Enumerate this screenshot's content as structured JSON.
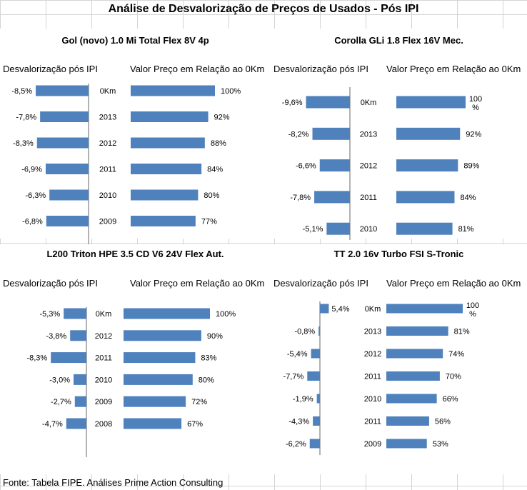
{
  "title": "Análise de Desvalorização de Preços de Usados - Pós IPI",
  "footer": "Fonte: Tabela FIPE. Análises Prime Action Consulting",
  "colors": {
    "bar": "#4f81bd",
    "axis": "#999999"
  },
  "chart_data": [
    {
      "type": "bar",
      "title": "Gol (novo) 1.0 Mi Total Flex 8V 4p",
      "left_header": "Desvalorização pós IPI",
      "right_header": "Valor Preço em Relação ao 0Km",
      "categories": [
        "0Km",
        "2013",
        "2012",
        "2011",
        "2010",
        "2009"
      ],
      "desvalorizacao": [
        -8.5,
        -7.8,
        -8.3,
        -6.9,
        -6.3,
        -6.8
      ],
      "desvalorizacao_labels": [
        "-8,5%",
        "-7,8%",
        "-8,3%",
        "-6,9%",
        "-6,3%",
        "-6,8%"
      ],
      "valor": [
        100,
        92,
        88,
        84,
        80,
        77
      ],
      "valor_labels": [
        "100%",
        "92%",
        "88%",
        "84%",
        "80%",
        "77%"
      ]
    },
    {
      "type": "bar",
      "title": "Corolla GLi 1.8 Flex 16V Mec.",
      "left_header": "Desvalorização pós IPI",
      "right_header": "Valor Preço em Relação ao 0Km",
      "categories": [
        "0Km",
        "2013",
        "2012",
        "2011",
        "2010"
      ],
      "desvalorizacao": [
        -9.6,
        -8.2,
        -6.6,
        -7.8,
        -5.1
      ],
      "desvalorizacao_labels": [
        "-9,6%",
        "-8,2%",
        "-6,6%",
        "-7,8%",
        "-5,1%"
      ],
      "valor": [
        100,
        92,
        89,
        84,
        81
      ],
      "valor_labels": [
        "100\n%",
        "92%",
        "89%",
        "84%",
        "81%"
      ]
    },
    {
      "type": "bar",
      "title": "L200 Triton HPE 3.5 CD V6 24V Flex Aut.",
      "left_header": "Desvalorização pós IPI",
      "right_header": "Valor Preço em Relação ao 0Km",
      "categories": [
        "0Km",
        "2012",
        "2011",
        "2010",
        "2009",
        "2008"
      ],
      "desvalorizacao": [
        -5.3,
        -3.8,
        -8.3,
        -3.0,
        -2.7,
        -4.7
      ],
      "desvalorizacao_labels": [
        "-5,3%",
        "-3,8%",
        "-8,3%",
        "-3,0%",
        "-2,7%",
        "-4,7%"
      ],
      "valor": [
        100,
        90,
        83,
        80,
        72,
        67
      ],
      "valor_labels": [
        "100%",
        "90%",
        "83%",
        "80%",
        "72%",
        "67%"
      ]
    },
    {
      "type": "bar",
      "title": "TT 2.0 16v Turbo FSI S-Tronic",
      "left_header": "Desvalorização pós IPI",
      "right_header": "Valor Preço em Relação ao 0Km",
      "categories": [
        "0Km",
        "2013",
        "2012",
        "2011",
        "2010",
        "2011",
        "2009"
      ],
      "desvalorizacao": [
        5.4,
        -0.8,
        -5.4,
        -7.7,
        -1.9,
        -4.3,
        -6.2
      ],
      "desvalorizacao_labels": [
        "5,4%",
        "-0,8%",
        "-5,4%",
        "-7,7%",
        "-1,9%",
        "-4,3%",
        "-6,2%"
      ],
      "valor": [
        100,
        81,
        74,
        70,
        66,
        56,
        53
      ],
      "valor_labels": [
        "100\n%",
        "81%",
        "74%",
        "70%",
        "66%",
        "56%",
        "53%"
      ]
    }
  ]
}
